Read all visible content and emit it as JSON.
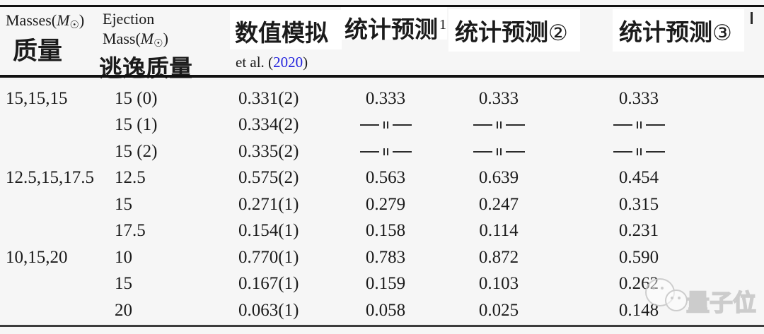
{
  "colors": {
    "background": "#f6f6f6",
    "text": "#1b1b1b",
    "rule_black": "#111111",
    "rule_bottom_gray": "#3c3c3c",
    "link_blue": "#2222dd",
    "overlay_white": "#ffffff",
    "watermark_gray": "#c7c7c7"
  },
  "header": {
    "col1": {
      "en_prefix": "Masses(",
      "en_symbol_main": "M",
      "en_symbol_sub": "☉",
      "en_suffix": ")",
      "zh": "质量"
    },
    "col2": {
      "en_line1": "Ejection",
      "en_prefix": "Mass(",
      "en_symbol_main": "M",
      "en_symbol_sub": "☉",
      "en_suffix": ")",
      "zh": "逃逸质量"
    },
    "col3": {
      "zh": "数值模拟",
      "ref_prefix": "et al. (",
      "ref_year": "2020",
      "ref_suffix": ")"
    },
    "stat_columns": [
      {
        "label": "统计预测",
        "marker": "1"
      },
      {
        "label": "统计预测",
        "marker": "②"
      },
      {
        "label": "统计预测",
        "marker": "③"
      }
    ]
  },
  "table": {
    "ditto_symbol": "—‖—",
    "rows": [
      [
        "15,15,15",
        "15 (0)",
        "0.331(2)",
        "0.333",
        "0.333",
        "0.333"
      ],
      [
        "",
        "15 (1)",
        "0.334(2)",
        "—‖—",
        "—‖—",
        "—‖—"
      ],
      [
        "",
        "15 (2)",
        "0.335(2)",
        "—‖—",
        "—‖—",
        "—‖—"
      ],
      [
        "12.5,15,17.5",
        "12.5",
        "0.575(2)",
        "0.563",
        "0.639",
        "0.454"
      ],
      [
        "",
        "15",
        "0.271(1)",
        "0.279",
        "0.247",
        "0.315"
      ],
      [
        "",
        "17.5",
        "0.154(1)",
        "0.158",
        "0.114",
        "0.231"
      ],
      [
        "10,15,20",
        "10",
        "0.770(1)",
        "0.783",
        "0.872",
        "0.590"
      ],
      [
        "",
        "15",
        "0.167(1)",
        "0.159",
        "0.103",
        "0.262"
      ],
      [
        "",
        "20",
        "0.063(1)",
        "0.058",
        "0.025",
        "0.148"
      ]
    ]
  },
  "watermark": {
    "text": "量子位"
  }
}
